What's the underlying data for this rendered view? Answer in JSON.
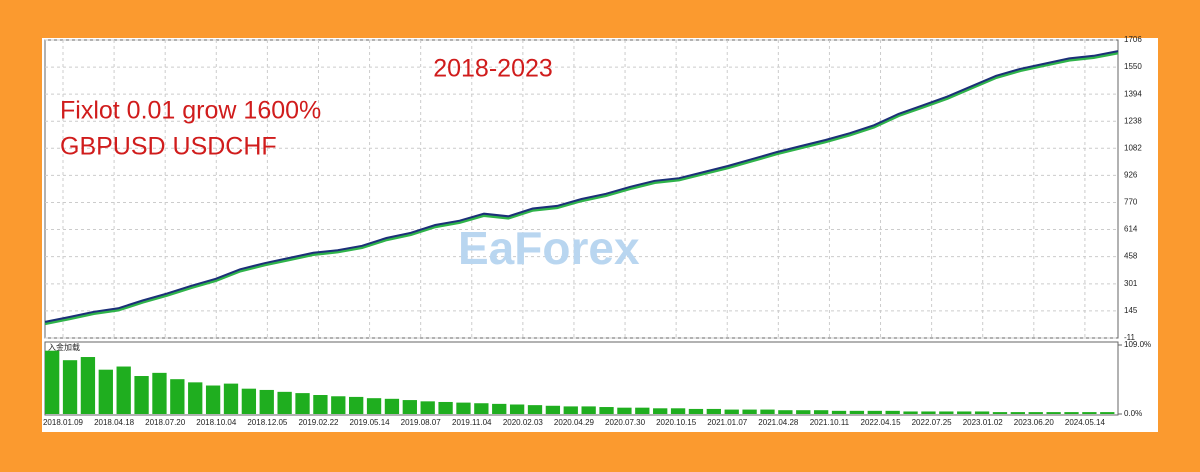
{
  "chart_data": [
    {
      "type": "line",
      "title": "2018-2023",
      "annotations": [
        "Fixlot 0.01 grow 1600%",
        "GBPUSD USDCHF"
      ],
      "watermark": "EaForex",
      "color": "#1c2f78",
      "ylim": [
        -11,
        1706
      ],
      "yticks": [
        -11,
        145,
        301,
        458,
        614,
        770,
        926,
        1082,
        1238,
        1394,
        1550,
        1706
      ],
      "grid": true,
      "values": [
        82,
        110,
        140,
        160,
        205,
        245,
        290,
        330,
        385,
        420,
        450,
        480,
        495,
        520,
        565,
        595,
        640,
        665,
        705,
        690,
        735,
        750,
        790,
        820,
        860,
        895,
        910,
        945,
        980,
        1020,
        1060,
        1095,
        1130,
        1169,
        1215,
        1280,
        1330,
        1380,
        1440,
        1500,
        1540,
        1570,
        1600,
        1615,
        1642
      ],
      "x_labels": [
        "2018.01.09",
        "2018.04.18",
        "2018.07.20",
        "2018.10.04",
        "2018.12.05",
        "2019.02.22",
        "2019.05.14",
        "2019.08.07",
        "2019.11.04",
        "2020.02.03",
        "2020.04.29",
        "2020.07.30",
        "2020.10.15",
        "2021.01.07",
        "2021.04.28",
        "2021.10.11",
        "2022.04.15",
        "2022.07.25",
        "2023.01.02",
        "2023.06.20",
        "2024.05.14"
      ]
    },
    {
      "type": "bar",
      "title": "入金加载",
      "color": "#1fae1f",
      "ylim": [
        0,
        109
      ],
      "yticks": [
        {
          "value": 0,
          "label": "0.0%"
        },
        {
          "value": 109,
          "label": "109.0%"
        }
      ],
      "values": [
        100,
        85,
        90,
        70,
        75,
        60,
        65,
        55,
        50,
        45,
        48,
        40,
        38,
        35,
        33,
        30,
        28,
        27,
        25,
        24,
        22,
        20,
        19,
        18,
        17,
        16,
        15,
        14,
        13,
        12,
        12,
        11,
        10,
        10,
        9,
        9,
        8,
        8,
        7,
        7,
        7,
        6,
        6,
        6,
        5,
        5,
        5,
        5,
        4,
        4,
        4,
        4,
        4,
        3,
        3,
        3,
        3,
        3,
        3,
        3
      ]
    }
  ]
}
